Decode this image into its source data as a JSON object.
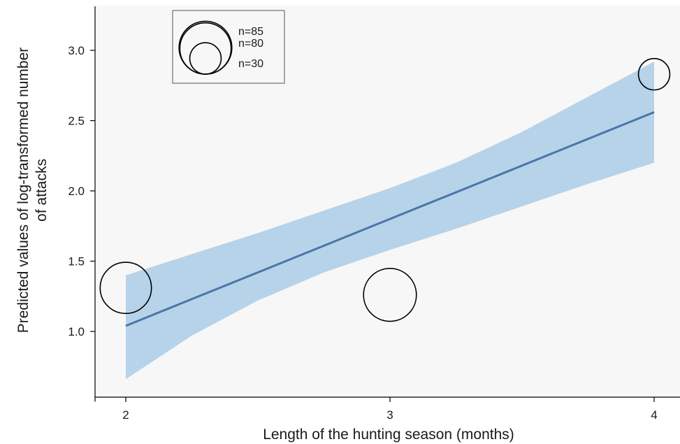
{
  "chart_data": {
    "type": "scatter",
    "xlabel": "Length of the hunting season (months)",
    "ylabel_lines": [
      "Predicted values of log-transformed number",
      "of attacks"
    ],
    "xlim": [
      2,
      4
    ],
    "ylim": [
      0.5,
      3.25
    ],
    "x_ticks": [
      "2",
      "3",
      "4"
    ],
    "y_ticks": [
      "1.0",
      "1.5",
      "2.0",
      "2.5",
      "3.0"
    ],
    "grid": false,
    "legend_position": "top-left",
    "colors": {
      "band": "#b7d3ea",
      "line": "#4a76a8",
      "background": "#f7f7f7",
      "circle": "#000000"
    },
    "fit_line": {
      "x": [
        2,
        4
      ],
      "y": [
        1.04,
        2.56
      ]
    },
    "confidence_band": {
      "x": [
        2.0,
        2.25,
        2.5,
        2.75,
        3.0,
        3.25,
        3.5,
        3.75,
        4.0
      ],
      "lower": [
        0.66,
        0.97,
        1.22,
        1.42,
        1.58,
        1.73,
        1.89,
        2.05,
        2.2
      ],
      "upper": [
        1.4,
        1.55,
        1.7,
        1.86,
        2.02,
        2.2,
        2.42,
        2.67,
        2.92
      ]
    },
    "points": [
      {
        "x": 2,
        "y": 1.31,
        "n": 80
      },
      {
        "x": 3,
        "y": 1.26,
        "n": 85
      },
      {
        "x": 4,
        "y": 2.83,
        "n": 30
      }
    ],
    "legend": [
      {
        "label": "n=85",
        "n": 85
      },
      {
        "label": "n=80",
        "n": 80
      },
      {
        "label": "n=30",
        "n": 30
      }
    ]
  }
}
